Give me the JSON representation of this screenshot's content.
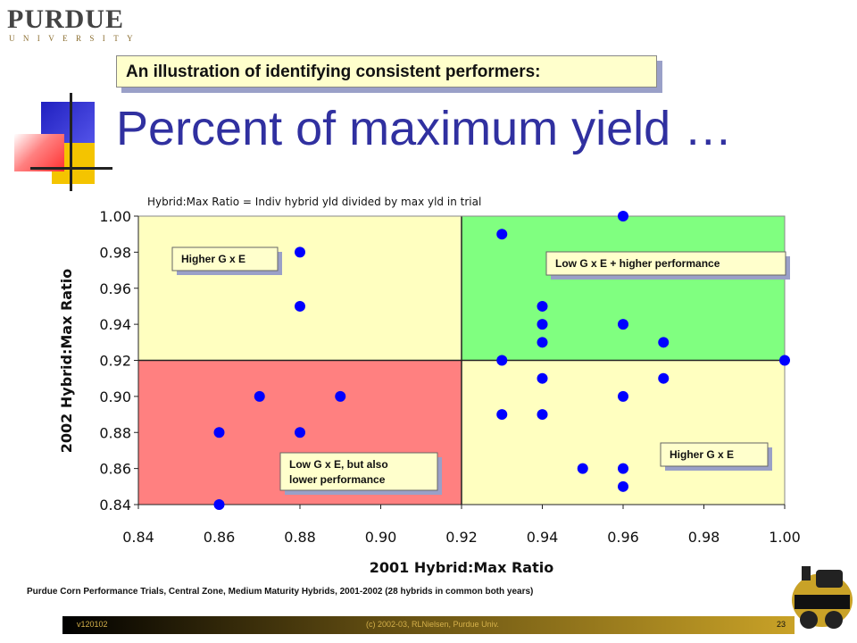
{
  "logo": {
    "word": "PURDUE",
    "sub": "UNIVERSITY"
  },
  "callout": "An illustration of identifying consistent performers:",
  "title": "Percent of maximum yield …",
  "footer_note": "Purdue Corn Performance Trials, Central Zone, Medium Maturity Hybrids, 2001-2002  (28 hybrids in common both years)",
  "footer": {
    "left": "v120102",
    "mid": "(c) 2002-03, RLNielsen, Purdue Univ.",
    "right": "23"
  },
  "colors": {
    "title": "#3030a0",
    "callout_bg": "#ffffcc",
    "red_quadrant": "#ff8080",
    "green_quadrant": "#80ff80",
    "yellow_quadrant": "#ffffc0",
    "point": "#0000ff"
  },
  "chart_data": {
    "type": "scatter",
    "title": "Hybrid:Max Ratio = Indiv hybrid yld divided by max yld in trial",
    "xlabel": "2001 Hybrid:Max Ratio",
    "ylabel": "2002 Hybrid:Max Ratio",
    "xlim": [
      0.84,
      1.0
    ],
    "ylim": [
      0.84,
      1.0
    ],
    "x_ticks": [
      "0.84",
      "0.86",
      "0.88",
      "0.90",
      "0.92",
      "0.94",
      "0.96",
      "0.98",
      "1.00"
    ],
    "y_ticks": [
      "0.84",
      "0.86",
      "0.88",
      "0.90",
      "0.92",
      "0.94",
      "0.96",
      "0.98",
      "1.00"
    ],
    "quadrant_split": {
      "x": 0.92,
      "y": 0.92
    },
    "quadrant_labels": [
      {
        "text": "Higher G x E"
      },
      {
        "text": "Low G x E + higher performance"
      },
      {
        "text": "Low G x E, but also lower performance"
      },
      {
        "text": "Higher G x E"
      }
    ],
    "points": [
      {
        "x": 0.86,
        "y": 0.88
      },
      {
        "x": 0.86,
        "y": 0.84
      },
      {
        "x": 0.87,
        "y": 0.9
      },
      {
        "x": 0.88,
        "y": 0.98
      },
      {
        "x": 0.88,
        "y": 0.95
      },
      {
        "x": 0.88,
        "y": 0.88
      },
      {
        "x": 0.89,
        "y": 0.9
      },
      {
        "x": 0.93,
        "y": 0.99
      },
      {
        "x": 0.93,
        "y": 0.92
      },
      {
        "x": 0.93,
        "y": 0.89
      },
      {
        "x": 0.94,
        "y": 0.95
      },
      {
        "x": 0.94,
        "y": 0.94
      },
      {
        "x": 0.94,
        "y": 0.93
      },
      {
        "x": 0.94,
        "y": 0.91
      },
      {
        "x": 0.94,
        "y": 0.89
      },
      {
        "x": 0.95,
        "y": 0.86
      },
      {
        "x": 0.96,
        "y": 1.0
      },
      {
        "x": 0.96,
        "y": 0.94
      },
      {
        "x": 0.96,
        "y": 0.9
      },
      {
        "x": 0.96,
        "y": 0.86
      },
      {
        "x": 0.96,
        "y": 0.85
      },
      {
        "x": 0.97,
        "y": 0.93
      },
      {
        "x": 0.97,
        "y": 0.91
      },
      {
        "x": 1.0,
        "y": 0.92
      }
    ]
  }
}
